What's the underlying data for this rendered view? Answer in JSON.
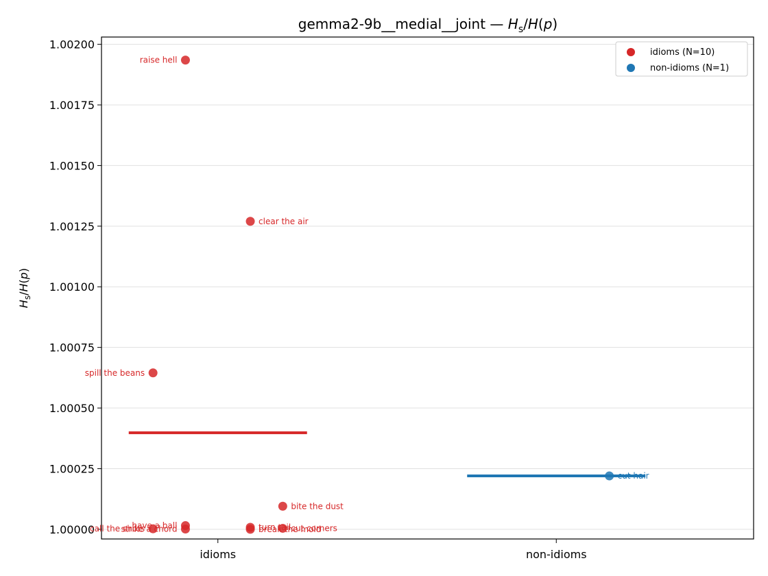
{
  "chart_data": {
    "type": "scatter",
    "title_prefix": "gemma2-9b__medial__joint — ",
    "ylabel": "Hs/H(p)",
    "categories": [
      "idioms",
      "non-idioms"
    ],
    "ylim": [
      0.99996,
      1.00203
    ],
    "yticks": [
      "1.00000",
      "1.00025",
      "1.00050",
      "1.00075",
      "1.00100",
      "1.00125",
      "1.00150",
      "1.00175",
      "1.00200"
    ],
    "grid": "horizontal",
    "legend_position": "top-right",
    "colors": {
      "idioms": "#d62728",
      "non-idioms": "#1f77b4"
    },
    "series": [
      {
        "name": "idioms (N=10)",
        "category": "idioms",
        "mean": 1.000398,
        "points": [
          {
            "label": "raise hell",
            "jitter": -0.11,
            "y": 1.001935,
            "anchor": "end"
          },
          {
            "label": "clear the air",
            "jitter": 0.11,
            "y": 1.00127,
            "anchor": "start"
          },
          {
            "label": "spill the beans",
            "jitter": -0.22,
            "y": 1.000645,
            "anchor": "end"
          },
          {
            "label": "bite the dust",
            "jitter": 0.22,
            "y": 1.000095,
            "anchor": "start"
          },
          {
            "label": "have a ball",
            "jitter": -0.11,
            "y": 1.000015,
            "anchor": "end"
          },
          {
            "label": "strike a chord",
            "jitter": -0.11,
            "y": 1.000001,
            "anchor": "end"
          },
          {
            "label": "call the shots",
            "jitter": -0.22,
            "y": 1.000002,
            "anchor": "end"
          },
          {
            "label": "turn tail",
            "jitter": 0.11,
            "y": 1.000008,
            "anchor": "start"
          },
          {
            "label": "break the mold",
            "jitter": 0.11,
            "y": 1.0,
            "anchor": "start"
          },
          {
            "label": "cut corners",
            "jitter": 0.22,
            "y": 1.000004,
            "anchor": "start"
          }
        ]
      },
      {
        "name": "non-idioms (N=1)",
        "category": "non-idioms",
        "mean": 1.00022,
        "points": [
          {
            "label": "cut hair",
            "jitter": 0.18,
            "y": 1.00022,
            "anchor": "start"
          }
        ]
      }
    ]
  }
}
